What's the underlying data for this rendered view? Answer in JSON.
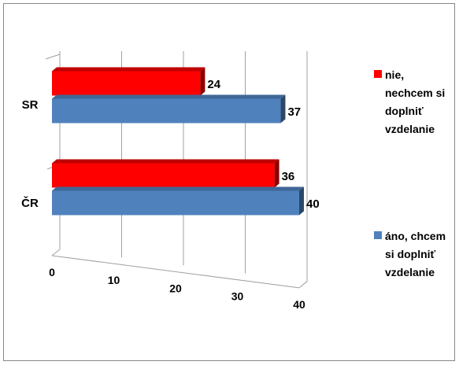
{
  "chart_data": {
    "type": "bar",
    "orientation": "horizontal",
    "style": "3d-clustered",
    "categories": [
      "SR",
      "ČR"
    ],
    "series": [
      {
        "name": "nie, nechcem si doplniť vzdelanie",
        "values": [
          24,
          36
        ],
        "color": "#ff0000"
      },
      {
        "name": "áno, chcem si doplniť vzdelanie",
        "values": [
          37,
          40
        ],
        "color": "#4f81bd"
      }
    ],
    "x_ticks": [
      "0",
      "10",
      "20",
      "30",
      "40"
    ],
    "xlim": [
      0,
      40
    ],
    "grid": true,
    "legend_position": "right"
  },
  "legend": [
    {
      "lines": [
        "nie,",
        "nechcem si",
        "doplniť",
        "vzdelanie"
      ],
      "color": "#ff0000"
    },
    {
      "lines": [
        "áno, chcem",
        "si doplniť",
        "vzdelanie"
      ],
      "color": "#4f81bd"
    }
  ]
}
